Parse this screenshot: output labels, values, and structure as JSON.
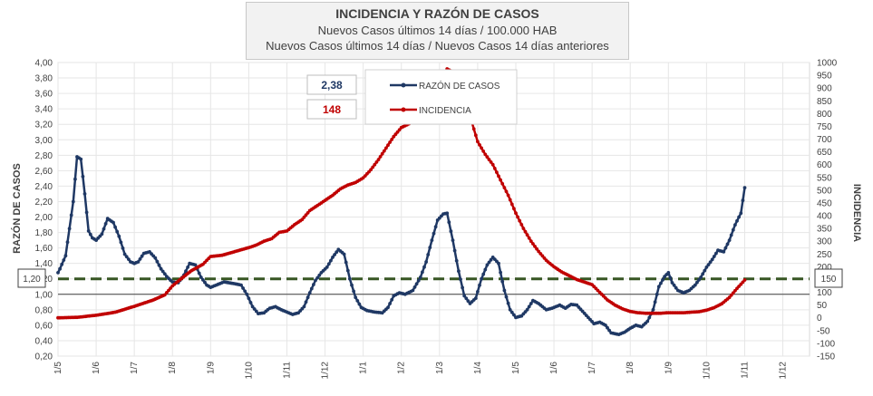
{
  "header": {
    "title": "INCIDENCIA Y RAZÓN DE CASOS",
    "subtitle1": "Nuevos Casos últimos 14 días / 100.000 HAB",
    "subtitle2": "Nuevos Casos últimos 14 días / Nuevos Casos 14 días anteriores"
  },
  "chart_data": {
    "type": "line",
    "title": "INCIDENCIA Y RAZÓN DE CASOS",
    "ylabel": "RAZÓN DE CASOS",
    "y2label": "INCIDENCIA",
    "ylim": [
      0.2,
      4.0
    ],
    "y2lim": [
      -150,
      1000
    ],
    "yticks": [
      "0,20",
      "0,40",
      "0,60",
      "0,80",
      "1,00",
      "1,20",
      "1,40",
      "1,60",
      "1,80",
      "2,00",
      "2,20",
      "2,40",
      "2,60",
      "2,80",
      "3,00",
      "3,20",
      "3,40",
      "3,60",
      "3,80",
      "4,00"
    ],
    "y2ticks": [
      "-150",
      "-100",
      "-50",
      "0",
      "50",
      "100",
      "150",
      "200",
      "250",
      "300",
      "350",
      "400",
      "450",
      "500",
      "550",
      "600",
      "650",
      "700",
      "750",
      "800",
      "850",
      "900",
      "950",
      "1000"
    ],
    "categories": [
      "1/5",
      "1/6",
      "1/7",
      "1/8",
      "1/9",
      "1/10",
      "1/11",
      "1/12",
      "1/1",
      "1/2",
      "1/3",
      "1/4",
      "1/5",
      "1/6",
      "1/7",
      "1/8",
      "1/9",
      "1/10",
      "1/11",
      "1/12"
    ],
    "reference_lines": [
      {
        "axis": "y",
        "value": 1.0,
        "style": "solid",
        "color": "#404040"
      },
      {
        "axis": "y",
        "value": 1.2,
        "style": "dashed",
        "color": "#375623",
        "left_label": "1,20",
        "right_label": "150"
      }
    ],
    "current_values": {
      "ratio": "2,38",
      "incidence": "148"
    },
    "series": [
      {
        "name": "RAZÓN DE CASOS",
        "axis": "left",
        "color": "#1f3864",
        "points": [
          [
            0,
            1.28
          ],
          [
            0.05,
            1.33
          ],
          [
            0.2,
            1.5
          ],
          [
            0.4,
            2.2
          ],
          [
            0.5,
            2.78
          ],
          [
            0.6,
            2.75
          ],
          [
            0.7,
            2.3
          ],
          [
            0.8,
            1.82
          ],
          [
            0.9,
            1.73
          ],
          [
            1.0,
            1.7
          ],
          [
            1.15,
            1.78
          ],
          [
            1.3,
            1.98
          ],
          [
            1.45,
            1.93
          ],
          [
            1.6,
            1.75
          ],
          [
            1.75,
            1.52
          ],
          [
            1.9,
            1.42
          ],
          [
            2.0,
            1.4
          ],
          [
            2.1,
            1.42
          ],
          [
            2.25,
            1.53
          ],
          [
            2.4,
            1.55
          ],
          [
            2.55,
            1.47
          ],
          [
            2.7,
            1.33
          ],
          [
            2.85,
            1.23
          ],
          [
            3.0,
            1.16
          ],
          [
            3.15,
            1.15
          ],
          [
            3.3,
            1.25
          ],
          [
            3.45,
            1.4
          ],
          [
            3.6,
            1.38
          ],
          [
            3.75,
            1.22
          ],
          [
            3.9,
            1.12
          ],
          [
            4.0,
            1.09
          ],
          [
            4.15,
            1.12
          ],
          [
            4.35,
            1.16
          ],
          [
            4.6,
            1.14
          ],
          [
            4.8,
            1.12
          ],
          [
            4.95,
            1.0
          ],
          [
            5.1,
            0.84
          ],
          [
            5.25,
            0.75
          ],
          [
            5.4,
            0.76
          ],
          [
            5.55,
            0.82
          ],
          [
            5.7,
            0.84
          ],
          [
            5.85,
            0.8
          ],
          [
            6.0,
            0.77
          ],
          [
            6.15,
            0.74
          ],
          [
            6.3,
            0.76
          ],
          [
            6.45,
            0.84
          ],
          [
            6.6,
            1.02
          ],
          [
            6.75,
            1.18
          ],
          [
            6.9,
            1.28
          ],
          [
            7.05,
            1.35
          ],
          [
            7.2,
            1.48
          ],
          [
            7.35,
            1.58
          ],
          [
            7.5,
            1.52
          ],
          [
            7.65,
            1.2
          ],
          [
            7.8,
            0.96
          ],
          [
            7.95,
            0.83
          ],
          [
            8.1,
            0.79
          ],
          [
            8.3,
            0.77
          ],
          [
            8.5,
            0.76
          ],
          [
            8.65,
            0.83
          ],
          [
            8.8,
            0.98
          ],
          [
            8.95,
            1.02
          ],
          [
            9.1,
            1.0
          ],
          [
            9.3,
            1.05
          ],
          [
            9.5,
            1.22
          ],
          [
            9.65,
            1.42
          ],
          [
            9.8,
            1.7
          ],
          [
            9.95,
            1.96
          ],
          [
            10.1,
            2.04
          ],
          [
            10.2,
            2.05
          ],
          [
            10.35,
            1.7
          ],
          [
            10.5,
            1.3
          ],
          [
            10.65,
            0.98
          ],
          [
            10.8,
            0.88
          ],
          [
            10.95,
            0.95
          ],
          [
            11.1,
            1.2
          ],
          [
            11.25,
            1.38
          ],
          [
            11.4,
            1.48
          ],
          [
            11.55,
            1.4
          ],
          [
            11.7,
            1.05
          ],
          [
            11.85,
            0.8
          ],
          [
            12.0,
            0.7
          ],
          [
            12.15,
            0.72
          ],
          [
            12.3,
            0.8
          ],
          [
            12.45,
            0.92
          ],
          [
            12.6,
            0.88
          ],
          [
            12.8,
            0.8
          ],
          [
            12.95,
            0.82
          ],
          [
            13.15,
            0.86
          ],
          [
            13.3,
            0.82
          ],
          [
            13.45,
            0.87
          ],
          [
            13.6,
            0.86
          ],
          [
            13.75,
            0.78
          ],
          [
            13.9,
            0.7
          ],
          [
            14.05,
            0.62
          ],
          [
            14.2,
            0.64
          ],
          [
            14.35,
            0.6
          ],
          [
            14.5,
            0.5
          ],
          [
            14.7,
            0.48
          ],
          [
            14.85,
            0.51
          ],
          [
            15.0,
            0.56
          ],
          [
            15.15,
            0.6
          ],
          [
            15.3,
            0.58
          ],
          [
            15.45,
            0.65
          ],
          [
            15.6,
            0.8
          ],
          [
            15.75,
            1.1
          ],
          [
            15.9,
            1.23
          ],
          [
            16.0,
            1.28
          ],
          [
            16.1,
            1.15
          ],
          [
            16.25,
            1.05
          ],
          [
            16.4,
            1.02
          ],
          [
            16.55,
            1.05
          ],
          [
            16.7,
            1.12
          ],
          [
            16.85,
            1.22
          ],
          [
            17.0,
            1.35
          ],
          [
            17.15,
            1.45
          ],
          [
            17.3,
            1.57
          ],
          [
            17.45,
            1.55
          ],
          [
            17.6,
            1.7
          ],
          [
            17.75,
            1.9
          ],
          [
            17.9,
            2.05
          ],
          [
            18.0,
            2.38
          ]
        ]
      },
      {
        "name": "INCIDENCIA",
        "axis": "right",
        "color": "#c00000",
        "points": [
          [
            0,
            0
          ],
          [
            0.5,
            2
          ],
          [
            1.0,
            10
          ],
          [
            1.5,
            22
          ],
          [
            2.0,
            45
          ],
          [
            2.5,
            70
          ],
          [
            2.8,
            90
          ],
          [
            3.0,
            125
          ],
          [
            3.2,
            150
          ],
          [
            3.5,
            185
          ],
          [
            3.8,
            210
          ],
          [
            4.0,
            240
          ],
          [
            4.3,
            245
          ],
          [
            4.6,
            258
          ],
          [
            5.0,
            275
          ],
          [
            5.2,
            285
          ],
          [
            5.4,
            300
          ],
          [
            5.6,
            310
          ],
          [
            5.8,
            335
          ],
          [
            6.0,
            340
          ],
          [
            6.2,
            365
          ],
          [
            6.4,
            385
          ],
          [
            6.6,
            420
          ],
          [
            6.8,
            440
          ],
          [
            7.0,
            460
          ],
          [
            7.2,
            480
          ],
          [
            7.4,
            505
          ],
          [
            7.6,
            520
          ],
          [
            7.8,
            530
          ],
          [
            8.0,
            548
          ],
          [
            8.2,
            580
          ],
          [
            8.4,
            620
          ],
          [
            8.6,
            665
          ],
          [
            8.8,
            710
          ],
          [
            9.0,
            745
          ],
          [
            9.2,
            760
          ],
          [
            9.4,
            800
          ],
          [
            9.6,
            855
          ],
          [
            9.8,
            890
          ],
          [
            10.0,
            940
          ],
          [
            10.2,
            975
          ],
          [
            10.4,
            960
          ],
          [
            10.6,
            900
          ],
          [
            10.8,
            790
          ],
          [
            11.0,
            690
          ],
          [
            11.2,
            640
          ],
          [
            11.4,
            600
          ],
          [
            11.6,
            540
          ],
          [
            11.8,
            480
          ],
          [
            12.0,
            410
          ],
          [
            12.2,
            350
          ],
          [
            12.4,
            300
          ],
          [
            12.6,
            260
          ],
          [
            12.8,
            225
          ],
          [
            13.0,
            200
          ],
          [
            13.2,
            180
          ],
          [
            13.4,
            165
          ],
          [
            13.6,
            150
          ],
          [
            13.8,
            140
          ],
          [
            14.0,
            130
          ],
          [
            14.2,
            100
          ],
          [
            14.4,
            70
          ],
          [
            14.6,
            50
          ],
          [
            14.8,
            35
          ],
          [
            15.0,
            25
          ],
          [
            15.2,
            20
          ],
          [
            15.4,
            18
          ],
          [
            15.6,
            18
          ],
          [
            15.8,
            18
          ],
          [
            16.0,
            20
          ],
          [
            16.2,
            20
          ],
          [
            16.4,
            20
          ],
          [
            16.6,
            22
          ],
          [
            16.8,
            24
          ],
          [
            17.0,
            30
          ],
          [
            17.2,
            40
          ],
          [
            17.4,
            55
          ],
          [
            17.6,
            80
          ],
          [
            17.8,
            115
          ],
          [
            18.0,
            148
          ]
        ]
      }
    ]
  }
}
